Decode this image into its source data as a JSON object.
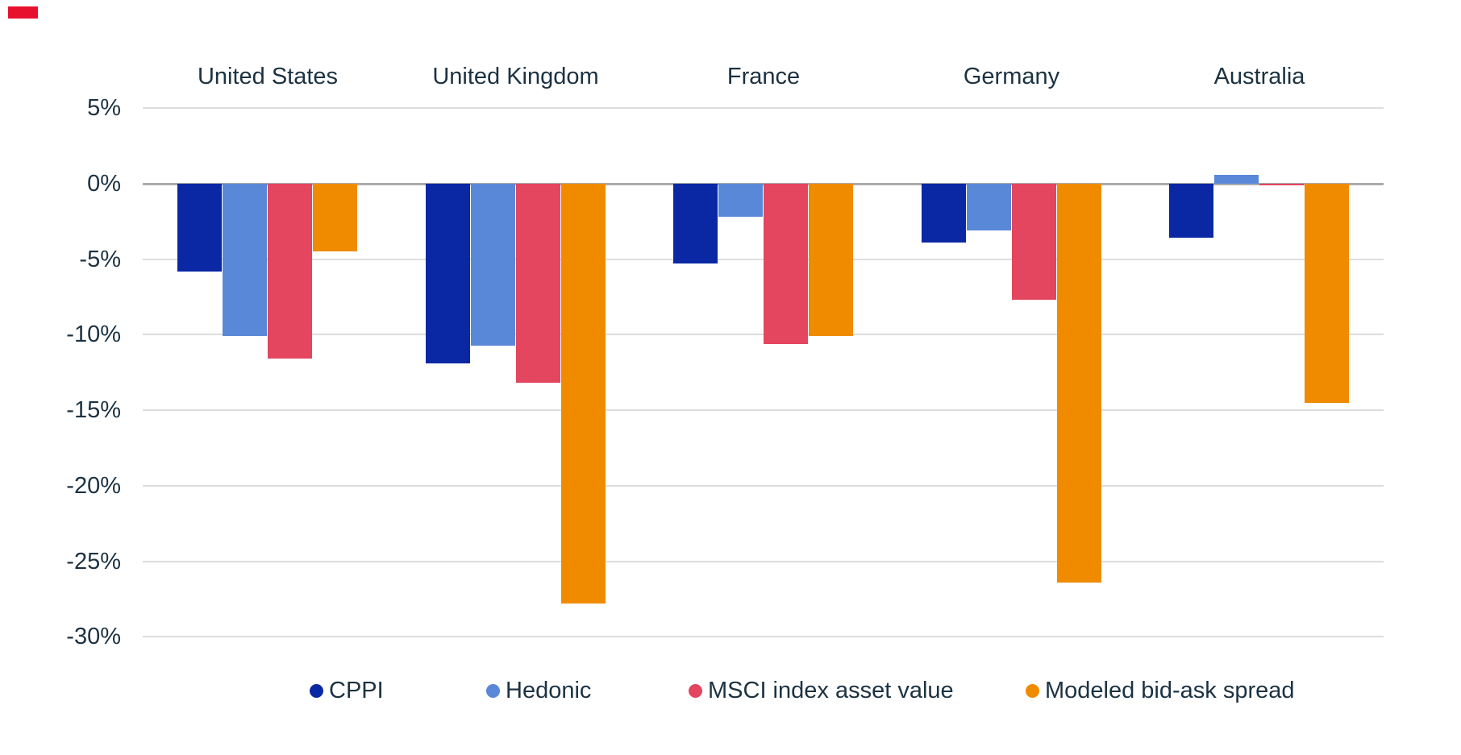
{
  "colors": {
    "background": "#FFFFFF",
    "text": "#1C3242",
    "grid_minor": "#DDDDDD",
    "grid_zero": "#ABABAB",
    "corner_accent": "#E8112D"
  },
  "chart_data": {
    "type": "bar",
    "title": "",
    "xlabel": "",
    "ylabel": "",
    "categories": [
      "United States",
      "United Kingdom",
      "France",
      "Germany",
      "Australia"
    ],
    "series": [
      {
        "name": "CPPI",
        "color": "#0A28A4",
        "values": [
          -5.8,
          -11.9,
          -5.3,
          -3.9,
          -3.6
        ]
      },
      {
        "name": "Hedonic",
        "color": "#5A88D8",
        "values": [
          -10.1,
          -10.7,
          -2.2,
          -3.1,
          0.6
        ]
      },
      {
        "name": "MSCI index asset value",
        "color": "#E4455F",
        "values": [
          -11.6,
          -13.2,
          -10.6,
          -7.7,
          -0.1
        ]
      },
      {
        "name": "Modeled bid-ask spread",
        "color": "#F08B00",
        "values": [
          -4.5,
          -27.8,
          -10.1,
          -26.4,
          -14.5
        ]
      }
    ],
    "y_ticks": [
      5,
      0,
      -5,
      -10,
      -15,
      -20,
      -25,
      -30
    ],
    "y_tick_labels": [
      "5%",
      "0%",
      "-5%",
      "-10%",
      "-15%",
      "-20%",
      "-25%",
      "-30%"
    ],
    "ylim": [
      -30,
      5
    ],
    "grid": "horizontal",
    "legend_position": "bottom"
  },
  "legend": {
    "items": [
      "CPPI",
      "Hedonic",
      "MSCI index asset value",
      "Modeled bid-ask spread"
    ]
  }
}
